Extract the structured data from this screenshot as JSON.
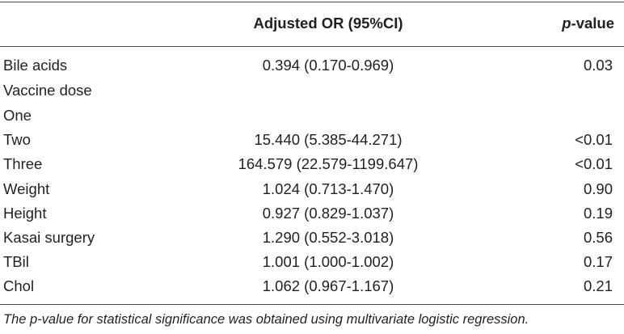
{
  "table": {
    "headers": {
      "label": "",
      "or": "Adjusted OR (95%CI)",
      "p_italic": "p",
      "p_rest": "-value"
    },
    "rows": [
      {
        "label": "Bile acids",
        "or": "0.394 (0.170-0.969)",
        "p": "0.03"
      },
      {
        "label": "Vaccine dose",
        "or": "",
        "p": ""
      },
      {
        "label": "One",
        "or": "",
        "p": ""
      },
      {
        "label": "Two",
        "or": "15.440 (5.385-44.271)",
        "p": "<0.01"
      },
      {
        "label": "Three",
        "or": "164.579 (22.579-1199.647)",
        "p": "<0.01"
      },
      {
        "label": "Weight",
        "or": "1.024 (0.713-1.470)",
        "p": "0.90"
      },
      {
        "label": "Height",
        "or": "0.927 (0.829-1.037)",
        "p": "0.19"
      },
      {
        "label": "Kasai surgery",
        "or": "1.290 (0.552-3.018)",
        "p": "0.56"
      },
      {
        "label": "TBil",
        "or": "1.001 (1.000-1.002)",
        "p": "0.17"
      },
      {
        "label": "Chol",
        "or": "1.062 (0.967-1.167)",
        "p": "0.21"
      }
    ]
  },
  "footnote": "The p-value for statistical significance was obtained using multivariate logistic regression."
}
